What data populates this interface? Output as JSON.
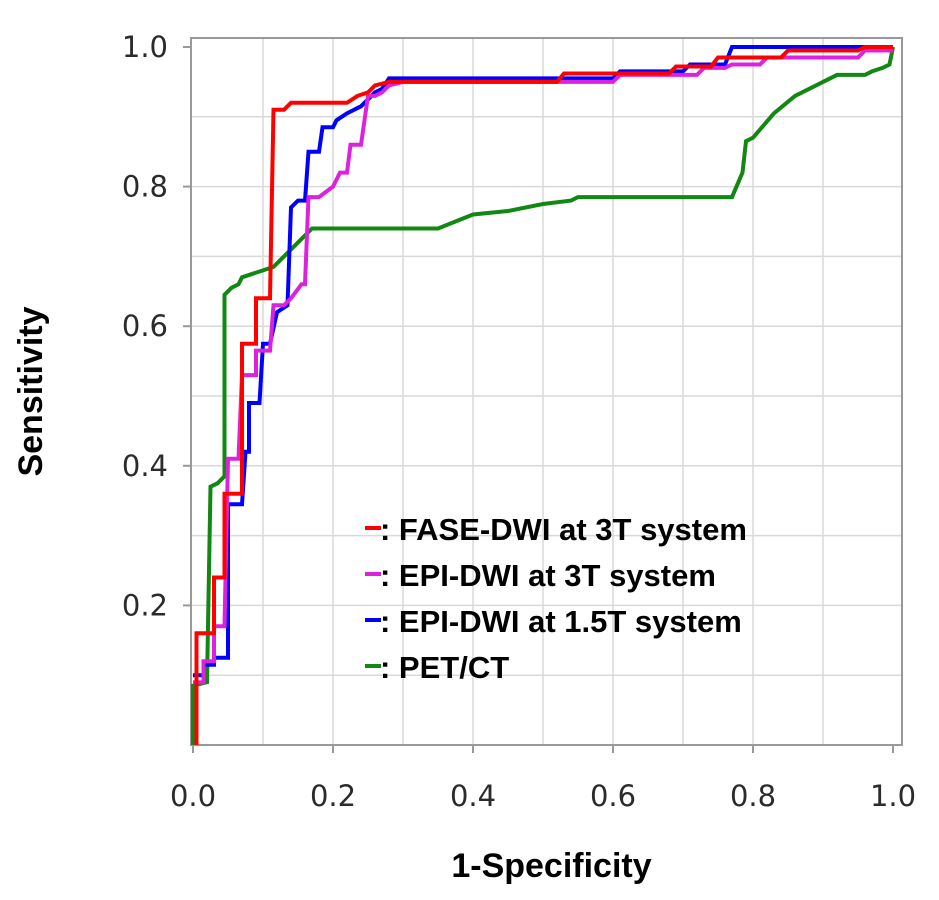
{
  "chart_data": {
    "type": "line",
    "title": "",
    "xlabel": "1-Specificity",
    "ylabel": "Sensitivity",
    "xlim": [
      0,
      1
    ],
    "ylim": [
      0,
      1
    ],
    "x_ticks": [
      "0.0",
      "0.2",
      "0.4",
      "0.6",
      "0.8",
      "1.0"
    ],
    "y_ticks": [
      "0.2",
      "0.4",
      "0.6",
      "0.8",
      "1.0"
    ],
    "grid": true,
    "legend_position": "bottom-right",
    "series": [
      {
        "name": ": FASE-DWI at 3T system",
        "color": "#ff0000",
        "points": [
          [
            0.005,
            0
          ],
          [
            0.005,
            0.16
          ],
          [
            0.03,
            0.16
          ],
          [
            0.03,
            0.24
          ],
          [
            0.045,
            0.24
          ],
          [
            0.045,
            0.36
          ],
          [
            0.06,
            0.36
          ],
          [
            0.07,
            0.36
          ],
          [
            0.07,
            0.575
          ],
          [
            0.09,
            0.575
          ],
          [
            0.09,
            0.64
          ],
          [
            0.11,
            0.64
          ],
          [
            0.115,
            0.91
          ],
          [
            0.13,
            0.91
          ],
          [
            0.14,
            0.92
          ],
          [
            0.22,
            0.92
          ],
          [
            0.235,
            0.93
          ],
          [
            0.25,
            0.935
          ],
          [
            0.26,
            0.945
          ],
          [
            0.28,
            0.95
          ],
          [
            0.52,
            0.95
          ],
          [
            0.53,
            0.962
          ],
          [
            0.68,
            0.962
          ],
          [
            0.69,
            0.972
          ],
          [
            0.74,
            0.972
          ],
          [
            0.75,
            0.985
          ],
          [
            0.84,
            0.985
          ],
          [
            0.85,
            0.995
          ],
          [
            0.95,
            0.995
          ],
          [
            0.96,
            1.0
          ],
          [
            1.0,
            1.0
          ]
        ]
      },
      {
        "name": ": EPI-DWI at 3T system",
        "color": "#dd22dd",
        "points": [
          [
            0,
            0.09
          ],
          [
            0.015,
            0.09
          ],
          [
            0.015,
            0.12
          ],
          [
            0.03,
            0.12
          ],
          [
            0.03,
            0.17
          ],
          [
            0.045,
            0.17
          ],
          [
            0.05,
            0.41
          ],
          [
            0.065,
            0.41
          ],
          [
            0.07,
            0.53
          ],
          [
            0.09,
            0.53
          ],
          [
            0.09,
            0.565
          ],
          [
            0.11,
            0.565
          ],
          [
            0.115,
            0.63
          ],
          [
            0.13,
            0.63
          ],
          [
            0.14,
            0.64
          ],
          [
            0.155,
            0.66
          ],
          [
            0.16,
            0.66
          ],
          [
            0.165,
            0.785
          ],
          [
            0.18,
            0.785
          ],
          [
            0.2,
            0.8
          ],
          [
            0.21,
            0.82
          ],
          [
            0.22,
            0.82
          ],
          [
            0.225,
            0.86
          ],
          [
            0.24,
            0.86
          ],
          [
            0.25,
            0.93
          ],
          [
            0.26,
            0.93
          ],
          [
            0.27,
            0.935
          ],
          [
            0.28,
            0.945
          ],
          [
            0.3,
            0.95
          ],
          [
            0.6,
            0.95
          ],
          [
            0.61,
            0.96
          ],
          [
            0.72,
            0.96
          ],
          [
            0.73,
            0.97
          ],
          [
            0.76,
            0.97
          ],
          [
            0.77,
            0.975
          ],
          [
            0.81,
            0.975
          ],
          [
            0.82,
            0.985
          ],
          [
            0.95,
            0.985
          ],
          [
            0.96,
            0.995
          ],
          [
            1.0,
            0.995
          ]
        ]
      },
      {
        "name": ": EPI-DWI at 1.5T system",
        "color": "#0000ff",
        "points": [
          [
            0,
            0.1
          ],
          [
            0.015,
            0.1
          ],
          [
            0.015,
            0.115
          ],
          [
            0.03,
            0.115
          ],
          [
            0.03,
            0.125
          ],
          [
            0.05,
            0.125
          ],
          [
            0.05,
            0.345
          ],
          [
            0.07,
            0.345
          ],
          [
            0.075,
            0.42
          ],
          [
            0.08,
            0.42
          ],
          [
            0.08,
            0.49
          ],
          [
            0.095,
            0.49
          ],
          [
            0.1,
            0.575
          ],
          [
            0.11,
            0.575
          ],
          [
            0.12,
            0.62
          ],
          [
            0.135,
            0.63
          ],
          [
            0.14,
            0.77
          ],
          [
            0.15,
            0.78
          ],
          [
            0.16,
            0.78
          ],
          [
            0.165,
            0.85
          ],
          [
            0.18,
            0.85
          ],
          [
            0.185,
            0.885
          ],
          [
            0.2,
            0.885
          ],
          [
            0.205,
            0.895
          ],
          [
            0.22,
            0.905
          ],
          [
            0.24,
            0.915
          ],
          [
            0.26,
            0.935
          ],
          [
            0.27,
            0.94
          ],
          [
            0.28,
            0.955
          ],
          [
            0.6,
            0.955
          ],
          [
            0.61,
            0.965
          ],
          [
            0.7,
            0.965
          ],
          [
            0.71,
            0.975
          ],
          [
            0.76,
            0.975
          ],
          [
            0.77,
            1.0
          ],
          [
            1.0,
            1.0
          ]
        ]
      },
      {
        "name": ": PET/CT",
        "color": "#118811",
        "points": [
          [
            0,
            0
          ],
          [
            0,
            0.085
          ],
          [
            0.02,
            0.09
          ],
          [
            0.025,
            0.37
          ],
          [
            0.035,
            0.375
          ],
          [
            0.045,
            0.385
          ],
          [
            0.045,
            0.645
          ],
          [
            0.055,
            0.655
          ],
          [
            0.065,
            0.66
          ],
          [
            0.07,
            0.67
          ],
          [
            0.085,
            0.675
          ],
          [
            0.1,
            0.68
          ],
          [
            0.115,
            0.685
          ],
          [
            0.14,
            0.71
          ],
          [
            0.17,
            0.74
          ],
          [
            0.2,
            0.74
          ],
          [
            0.35,
            0.74
          ],
          [
            0.4,
            0.76
          ],
          [
            0.45,
            0.765
          ],
          [
            0.5,
            0.775
          ],
          [
            0.54,
            0.78
          ],
          [
            0.55,
            0.785
          ],
          [
            0.77,
            0.785
          ],
          [
            0.785,
            0.82
          ],
          [
            0.79,
            0.865
          ],
          [
            0.8,
            0.87
          ],
          [
            0.83,
            0.905
          ],
          [
            0.86,
            0.93
          ],
          [
            0.89,
            0.945
          ],
          [
            0.92,
            0.96
          ],
          [
            0.96,
            0.96
          ],
          [
            0.97,
            0.965
          ],
          [
            0.985,
            0.97
          ],
          [
            0.995,
            0.975
          ],
          [
            1.0,
            1.0
          ]
        ]
      }
    ]
  }
}
